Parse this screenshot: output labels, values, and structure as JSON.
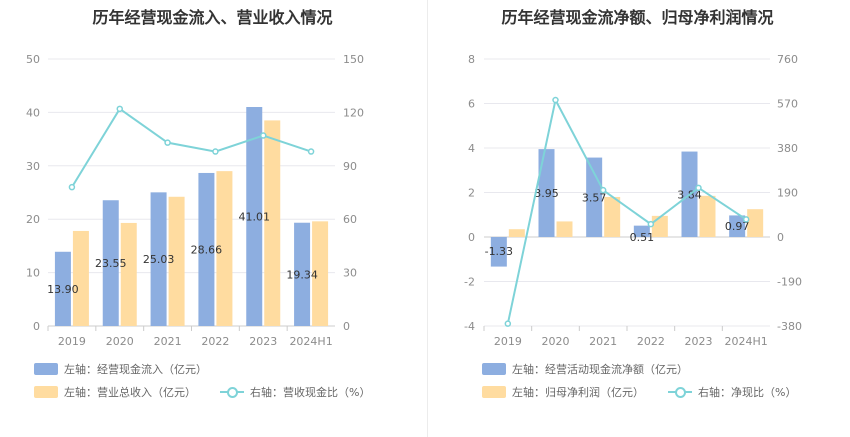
{
  "colors": {
    "bar1": "#8daee0",
    "bar2": "#ffdca0",
    "line": "#7ed3d8",
    "grid": "#e8e8ee",
    "axis": "#cccccc"
  },
  "left": {
    "title": "历年经营现金流入、营业收入情况",
    "legend": {
      "bar1": "左轴：经营现金流入（亿元）",
      "bar2": "左轴：营业总收入（亿元）",
      "line": "右轴：营收现金比（%）"
    }
  },
  "right": {
    "title": "历年经营现金流净额、归母净利润情况",
    "legend": {
      "bar1": "左轴：经营活动现金流净额（亿元）",
      "bar2": "左轴：归母净利润（亿元）",
      "line": "右轴：净现比（%）"
    }
  },
  "chart_data": [
    {
      "type": "bar",
      "title": "历年经营现金流入、营业收入情况",
      "categories": [
        "2019",
        "2020",
        "2021",
        "2022",
        "2023",
        "2024H1"
      ],
      "series": [
        {
          "name": "左轴：经营现金流入（亿元）",
          "values": [
            13.9,
            23.55,
            25.03,
            28.66,
            41.01,
            19.34
          ],
          "labels": [
            "13.90",
            "23.55",
            "25.03",
            "28.66",
            "41.01",
            "19.34"
          ],
          "axis": "left"
        },
        {
          "name": "左轴：营业总收入（亿元）",
          "values": [
            17.8,
            19.3,
            24.2,
            29.0,
            38.5,
            19.6
          ],
          "axis": "left"
        },
        {
          "name": "右轴：营收现金比（%）",
          "type": "line",
          "values": [
            78,
            122,
            103,
            98,
            107,
            98
          ],
          "axis": "right"
        }
      ],
      "ylim_left": [
        0,
        50
      ],
      "yticks_left": [
        "0",
        "10",
        "20",
        "30",
        "40",
        "50"
      ],
      "ylim_right": [
        0,
        150
      ],
      "yticks_right": [
        "0",
        "30",
        "60",
        "90",
        "120",
        "150"
      ]
    },
    {
      "type": "bar",
      "title": "历年经营现金流净额、归母净利润情况",
      "categories": [
        "2019",
        "2020",
        "2021",
        "2022",
        "2023",
        "2024H1"
      ],
      "series": [
        {
          "name": "左轴：经营活动现金流净额（亿元）",
          "values": [
            -1.33,
            3.95,
            3.57,
            0.51,
            3.84,
            0.97
          ],
          "labels": [
            "-1.33",
            "3.95",
            "3.57",
            "0.51",
            "3.84",
            "0.97"
          ],
          "axis": "left"
        },
        {
          "name": "左轴：归母净利润（亿元）",
          "values": [
            0.35,
            0.7,
            1.8,
            0.95,
            1.85,
            1.25
          ],
          "axis": "left"
        },
        {
          "name": "右轴：净现比（%）",
          "type": "line",
          "values": [
            -370,
            585,
            200,
            55,
            210,
            75
          ],
          "axis": "right"
        }
      ],
      "ylim_left": [
        -4,
        8
      ],
      "yticks_left": [
        "-4",
        "-2",
        "0",
        "2",
        "4",
        "6",
        "8"
      ],
      "ylim_right": [
        -380,
        760
      ],
      "yticks_right": [
        "-380",
        "-190",
        "0",
        "190",
        "380",
        "570",
        "760"
      ]
    }
  ]
}
